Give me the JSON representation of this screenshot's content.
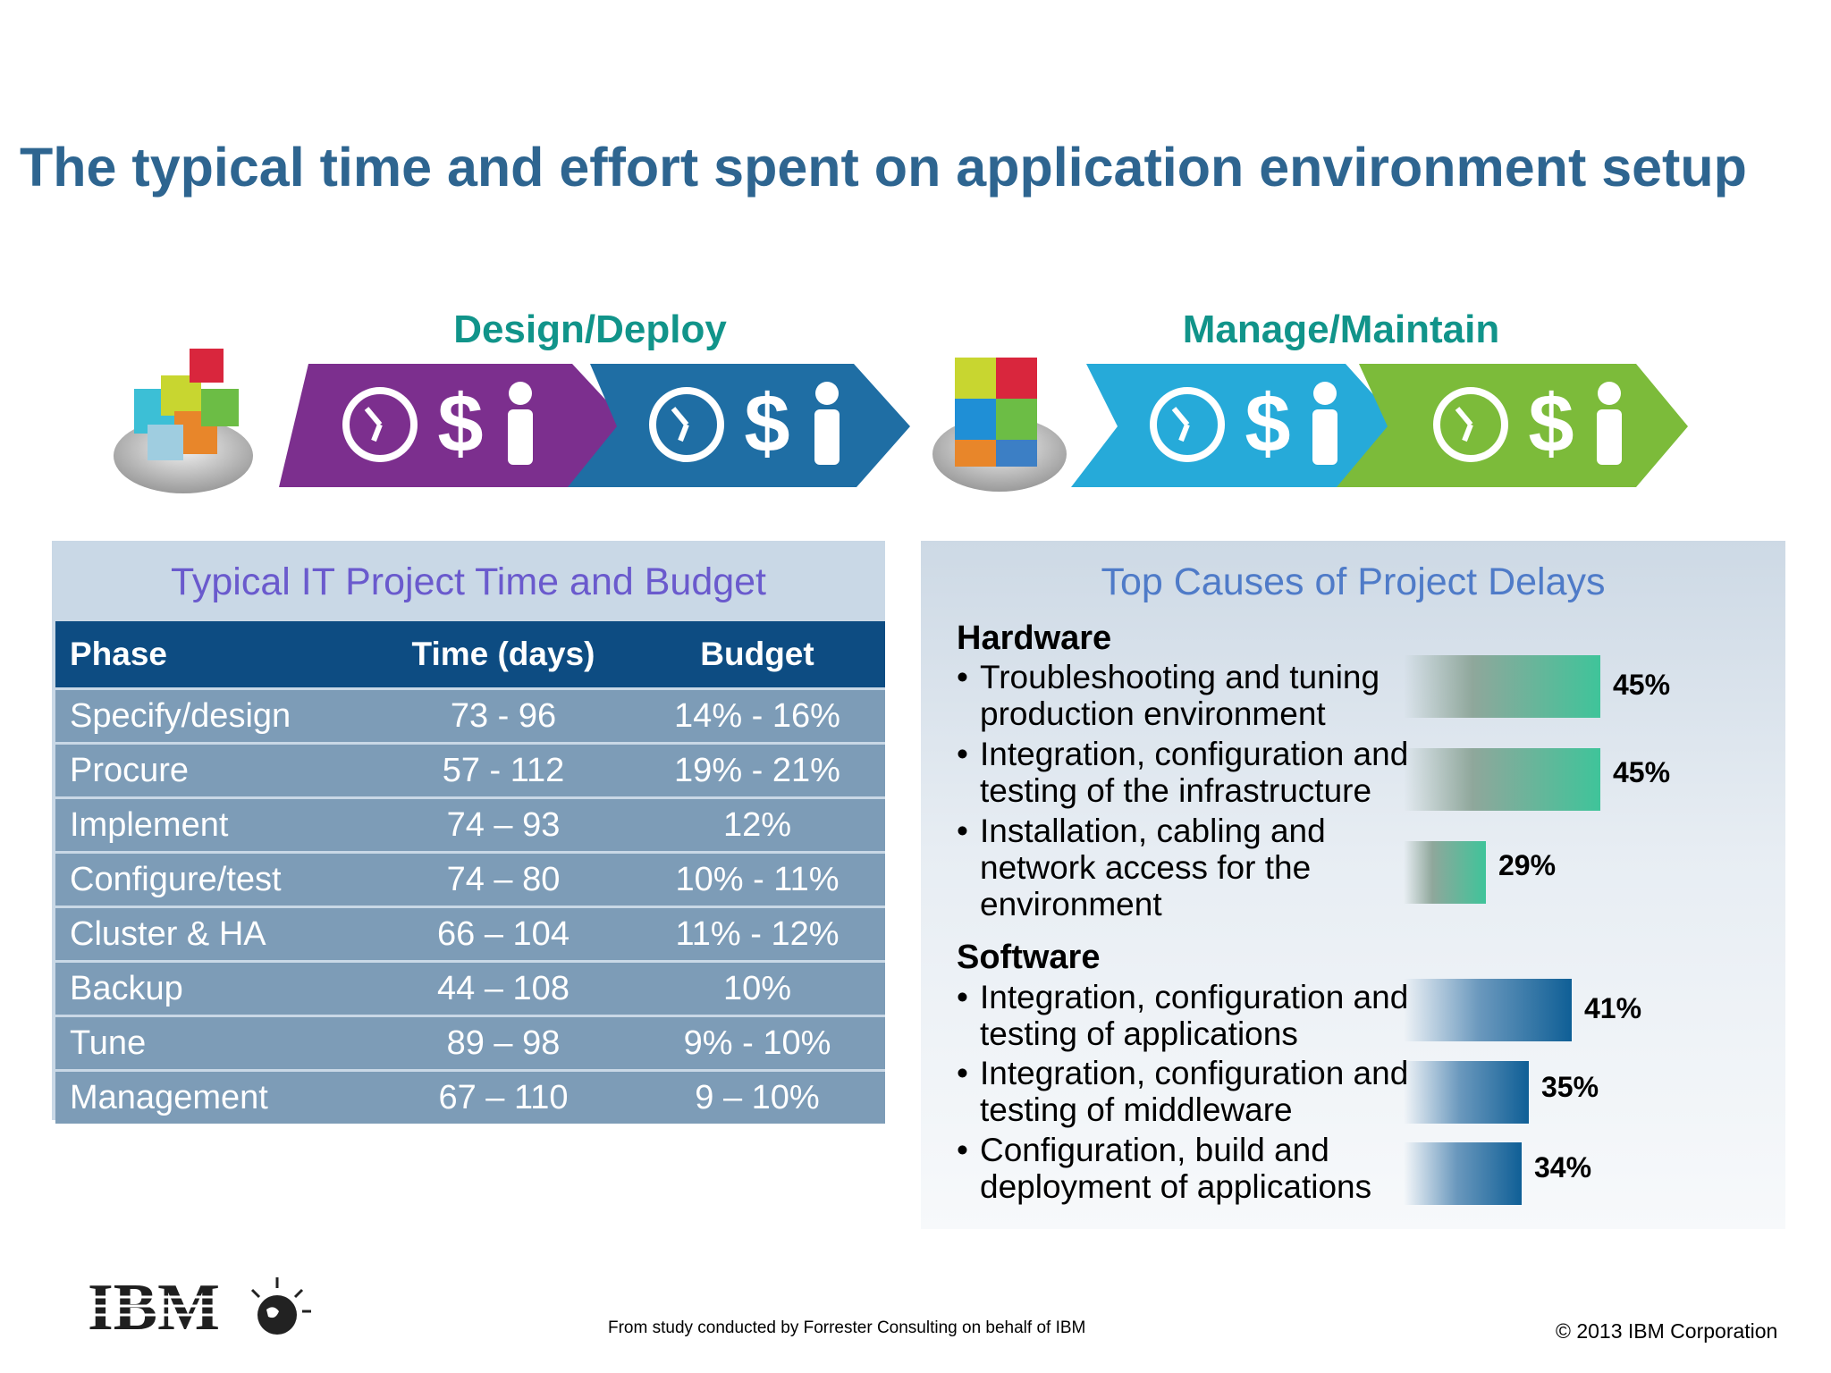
{
  "title": "The typical time and effort spent on application environment setup",
  "phases": {
    "left_label": "Design/Deploy",
    "right_label": "Manage/Maintain",
    "arrow_symbol": "$",
    "colors": [
      "#7c2f8e",
      "#1f6ea4",
      "#26aad9",
      "#7cbb3a"
    ]
  },
  "left_panel": {
    "title": "Typical IT Project Time and Budget",
    "headers": [
      "Phase",
      "Time (days)",
      "Budget"
    ],
    "rows": [
      [
        "Specify/design",
        "73 - 96",
        "14% - 16%"
      ],
      [
        "Procure",
        "57 - 112",
        "19% - 21%"
      ],
      [
        "Implement",
        "74 – 93",
        "12%"
      ],
      [
        "Configure/test",
        "74 – 80",
        "10% - 11%"
      ],
      [
        "Cluster & HA",
        "66 – 104",
        "11% - 12%"
      ],
      [
        "Backup",
        "44 – 108",
        "10%"
      ],
      [
        "Tune",
        "89 – 98",
        "9% - 10%"
      ],
      [
        "Management",
        "67 – 110",
        "9 – 10%"
      ]
    ]
  },
  "right_panel": {
    "title": "Top Causes of Project Delays",
    "bullet": "•",
    "hardware": {
      "heading": "Hardware",
      "items": [
        {
          "line1": "Troubleshooting and tuning",
          "line2": "production environment",
          "line3": "",
          "value": 45,
          "label": "45%"
        },
        {
          "line1": "Integration, configuration and",
          "line2": "testing of the infrastructure",
          "line3": "",
          "value": 45,
          "label": "45%"
        },
        {
          "line1": "Installation, cabling and",
          "line2": "network access for the",
          "line3": "environment",
          "value": 29,
          "label": "29%"
        }
      ]
    },
    "software": {
      "heading": "Software",
      "items": [
        {
          "line1": "Integration, configuration and",
          "line2": "testing of applications",
          "line3": "",
          "value": 41,
          "label": "41%"
        },
        {
          "line1": "Integration, configuration and",
          "line2": "testing of middleware",
          "line3": "",
          "value": 35,
          "label": "35%"
        },
        {
          "line1": "Configuration, build and",
          "line2": "deployment of applications",
          "line3": "",
          "value": 34,
          "label": "34%"
        }
      ]
    }
  },
  "footer": {
    "logo_text": "IBM",
    "source": "From  study conducted by Forrester Consulting on behalf of IBM",
    "copyright": "© 2013 IBM Corporation"
  }
}
